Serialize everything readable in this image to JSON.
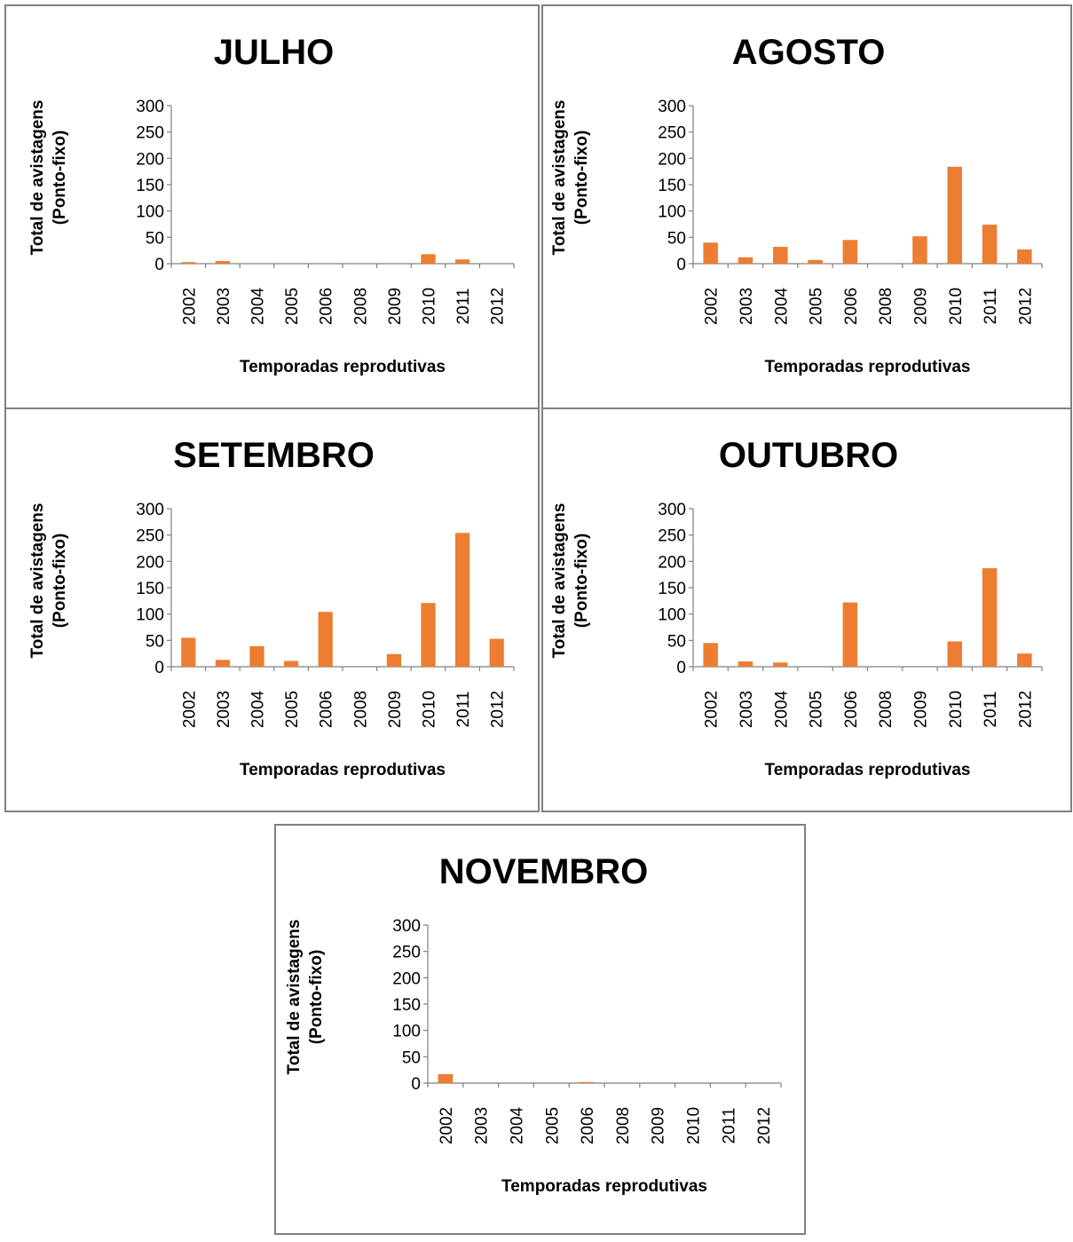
{
  "colors": {
    "bar": "#ED7D31",
    "axis": "#808080"
  },
  "chart_data": [
    {
      "type": "bar",
      "title": "JULHO",
      "xlabel": "Temporadas reprodutivas",
      "ylabel": [
        "Total de avistagens",
        "(Ponto-fixo)"
      ],
      "categories": [
        "2002",
        "2003",
        "2004",
        "2005",
        "2006",
        "2008",
        "2009",
        "2010",
        "2011",
        "2012"
      ],
      "values": [
        3,
        5,
        0,
        0,
        0,
        0,
        0,
        18,
        8,
        0
      ],
      "ylim": [
        0,
        300
      ],
      "yticks": [
        "0",
        "50",
        "100",
        "150",
        "200",
        "250",
        "300"
      ]
    },
    {
      "type": "bar",
      "title": "AGOSTO",
      "xlabel": "Temporadas reprodutivas",
      "ylabel": [
        "Total de avistagens",
        "(Ponto-fixo)"
      ],
      "categories": [
        "2002",
        "2003",
        "2004",
        "2005",
        "2006",
        "2008",
        "2009",
        "2010",
        "2011",
        "2012"
      ],
      "values": [
        40,
        12,
        32,
        7,
        45,
        0,
        52,
        184,
        74,
        27
      ],
      "ylim": [
        0,
        300
      ],
      "yticks": [
        "0",
        "50",
        "100",
        "150",
        "200",
        "250",
        "300"
      ]
    },
    {
      "type": "bar",
      "title": "SETEMBRO",
      "xlabel": "Temporadas reprodutivas",
      "ylabel": [
        "Total de avistagens",
        "(Ponto-fixo)"
      ],
      "categories": [
        "2002",
        "2003",
        "2004",
        "2005",
        "2006",
        "2008",
        "2009",
        "2010",
        "2011",
        "2012"
      ],
      "values": [
        55,
        13,
        39,
        11,
        104,
        0,
        24,
        121,
        254,
        53
      ],
      "ylim": [
        0,
        300
      ],
      "yticks": [
        "0",
        "50",
        "100",
        "150",
        "200",
        "250",
        "300"
      ]
    },
    {
      "type": "bar",
      "title": "OUTUBRO",
      "xlabel": "Temporadas reprodutivas",
      "ylabel": [
        "Total de avistagens",
        "(Ponto-fixo)"
      ],
      "categories": [
        "2002",
        "2003",
        "2004",
        "2005",
        "2006",
        "2008",
        "2009",
        "2010",
        "2011",
        "2012"
      ],
      "values": [
        45,
        10,
        8,
        0,
        122,
        0,
        0,
        48,
        187,
        25
      ],
      "ylim": [
        0,
        300
      ],
      "yticks": [
        "0",
        "50",
        "100",
        "150",
        "200",
        "250",
        "300"
      ]
    },
    {
      "type": "bar",
      "title": "NOVEMBRO",
      "xlabel": "Temporadas reprodutivas",
      "ylabel": [
        "Total de avistagens",
        "(Ponto-fixo)"
      ],
      "categories": [
        "2002",
        "2003",
        "2004",
        "2005",
        "2006",
        "2008",
        "2009",
        "2010",
        "2011",
        "2012"
      ],
      "values": [
        17,
        0,
        0,
        0,
        2,
        0,
        0,
        0,
        0,
        0
      ],
      "ylim": [
        0,
        300
      ],
      "yticks": [
        "0",
        "50",
        "100",
        "150",
        "200",
        "250",
        "300"
      ]
    }
  ]
}
